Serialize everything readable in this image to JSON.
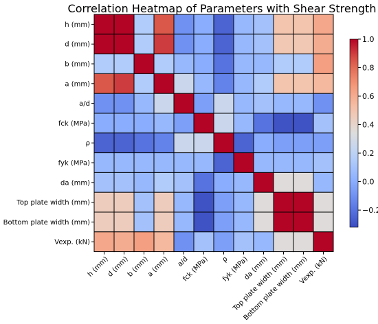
{
  "chart_data": {
    "type": "heatmap",
    "title": "Correlation Heatmap of Parameters with Shear Strength",
    "row_labels": [
      "h (mm)",
      "d (mm)",
      "b (mm)",
      "a (mm)",
      "a/d",
      "fck (MPa)",
      "ρ",
      "fyk (MPa)",
      "da (mm)",
      "Top plate width (mm)",
      "Bottom plate width (mm)",
      "Vexp. (kN)"
    ],
    "col_labels": [
      "h (mm)",
      "d (mm)",
      "b (mm)",
      "a (mm)",
      "a/d",
      "fck (MPa)",
      "ρ",
      "fyk (MPa)",
      "da (mm)",
      "Top plate width (mm)",
      "Bottom plate width (mm)",
      "Vexp. (kN)"
    ],
    "values": [
      [
        1.0,
        1.0,
        0.15,
        0.85,
        -0.1,
        0.0,
        -0.25,
        0.05,
        0.1,
        0.5,
        0.5,
        0.62
      ],
      [
        1.0,
        1.0,
        0.15,
        0.9,
        -0.1,
        0.0,
        -0.25,
        0.05,
        0.1,
        0.48,
        0.48,
        0.6
      ],
      [
        0.15,
        0.15,
        1.0,
        0.15,
        0.05,
        0.0,
        -0.2,
        0.05,
        0.05,
        0.15,
        0.15,
        0.65
      ],
      [
        0.85,
        0.9,
        0.15,
        1.0,
        0.25,
        0.05,
        -0.15,
        0.05,
        0.15,
        0.5,
        0.5,
        0.55
      ],
      [
        -0.1,
        -0.1,
        0.05,
        0.25,
        1.0,
        -0.05,
        0.25,
        0.05,
        0.1,
        0.05,
        0.05,
        -0.1
      ],
      [
        0.0,
        0.0,
        0.0,
        0.05,
        -0.05,
        1.0,
        0.25,
        0.05,
        -0.2,
        -0.3,
        -0.3,
        0.1
      ],
      [
        -0.25,
        -0.25,
        -0.2,
        -0.15,
        0.25,
        0.25,
        1.0,
        -0.25,
        0.0,
        -0.05,
        -0.05,
        -0.05
      ],
      [
        0.05,
        0.05,
        0.05,
        0.05,
        0.05,
        0.05,
        -0.25,
        1.0,
        0.05,
        0.05,
        0.05,
        0.1
      ],
      [
        0.1,
        0.1,
        0.05,
        0.15,
        0.1,
        -0.2,
        0.0,
        0.05,
        1.0,
        0.35,
        0.35,
        0.05
      ],
      [
        0.45,
        0.45,
        0.1,
        0.45,
        0.05,
        -0.3,
        -0.05,
        0.05,
        0.35,
        1.0,
        1.0,
        0.35
      ],
      [
        0.45,
        0.45,
        0.1,
        0.45,
        0.05,
        -0.3,
        -0.05,
        0.05,
        0.35,
        1.0,
        1.0,
        0.35
      ],
      [
        0.62,
        0.6,
        0.65,
        0.55,
        -0.1,
        0.1,
        -0.05,
        0.1,
        0.05,
        0.35,
        0.35,
        1.0
      ]
    ],
    "colormap": "coolwarm",
    "vmin": -0.32,
    "vmax": 1.0,
    "colorbar_ticks": [
      1.0,
      0.8,
      0.6,
      0.4,
      0.2,
      0.0,
      -0.2
    ],
    "colorbar_tick_labels": [
      "1.0",
      "0.8",
      "0.6",
      "0.4",
      "0.2",
      "0.0",
      "−0.2"
    ],
    "legend_placement": "right",
    "grid": true
  }
}
